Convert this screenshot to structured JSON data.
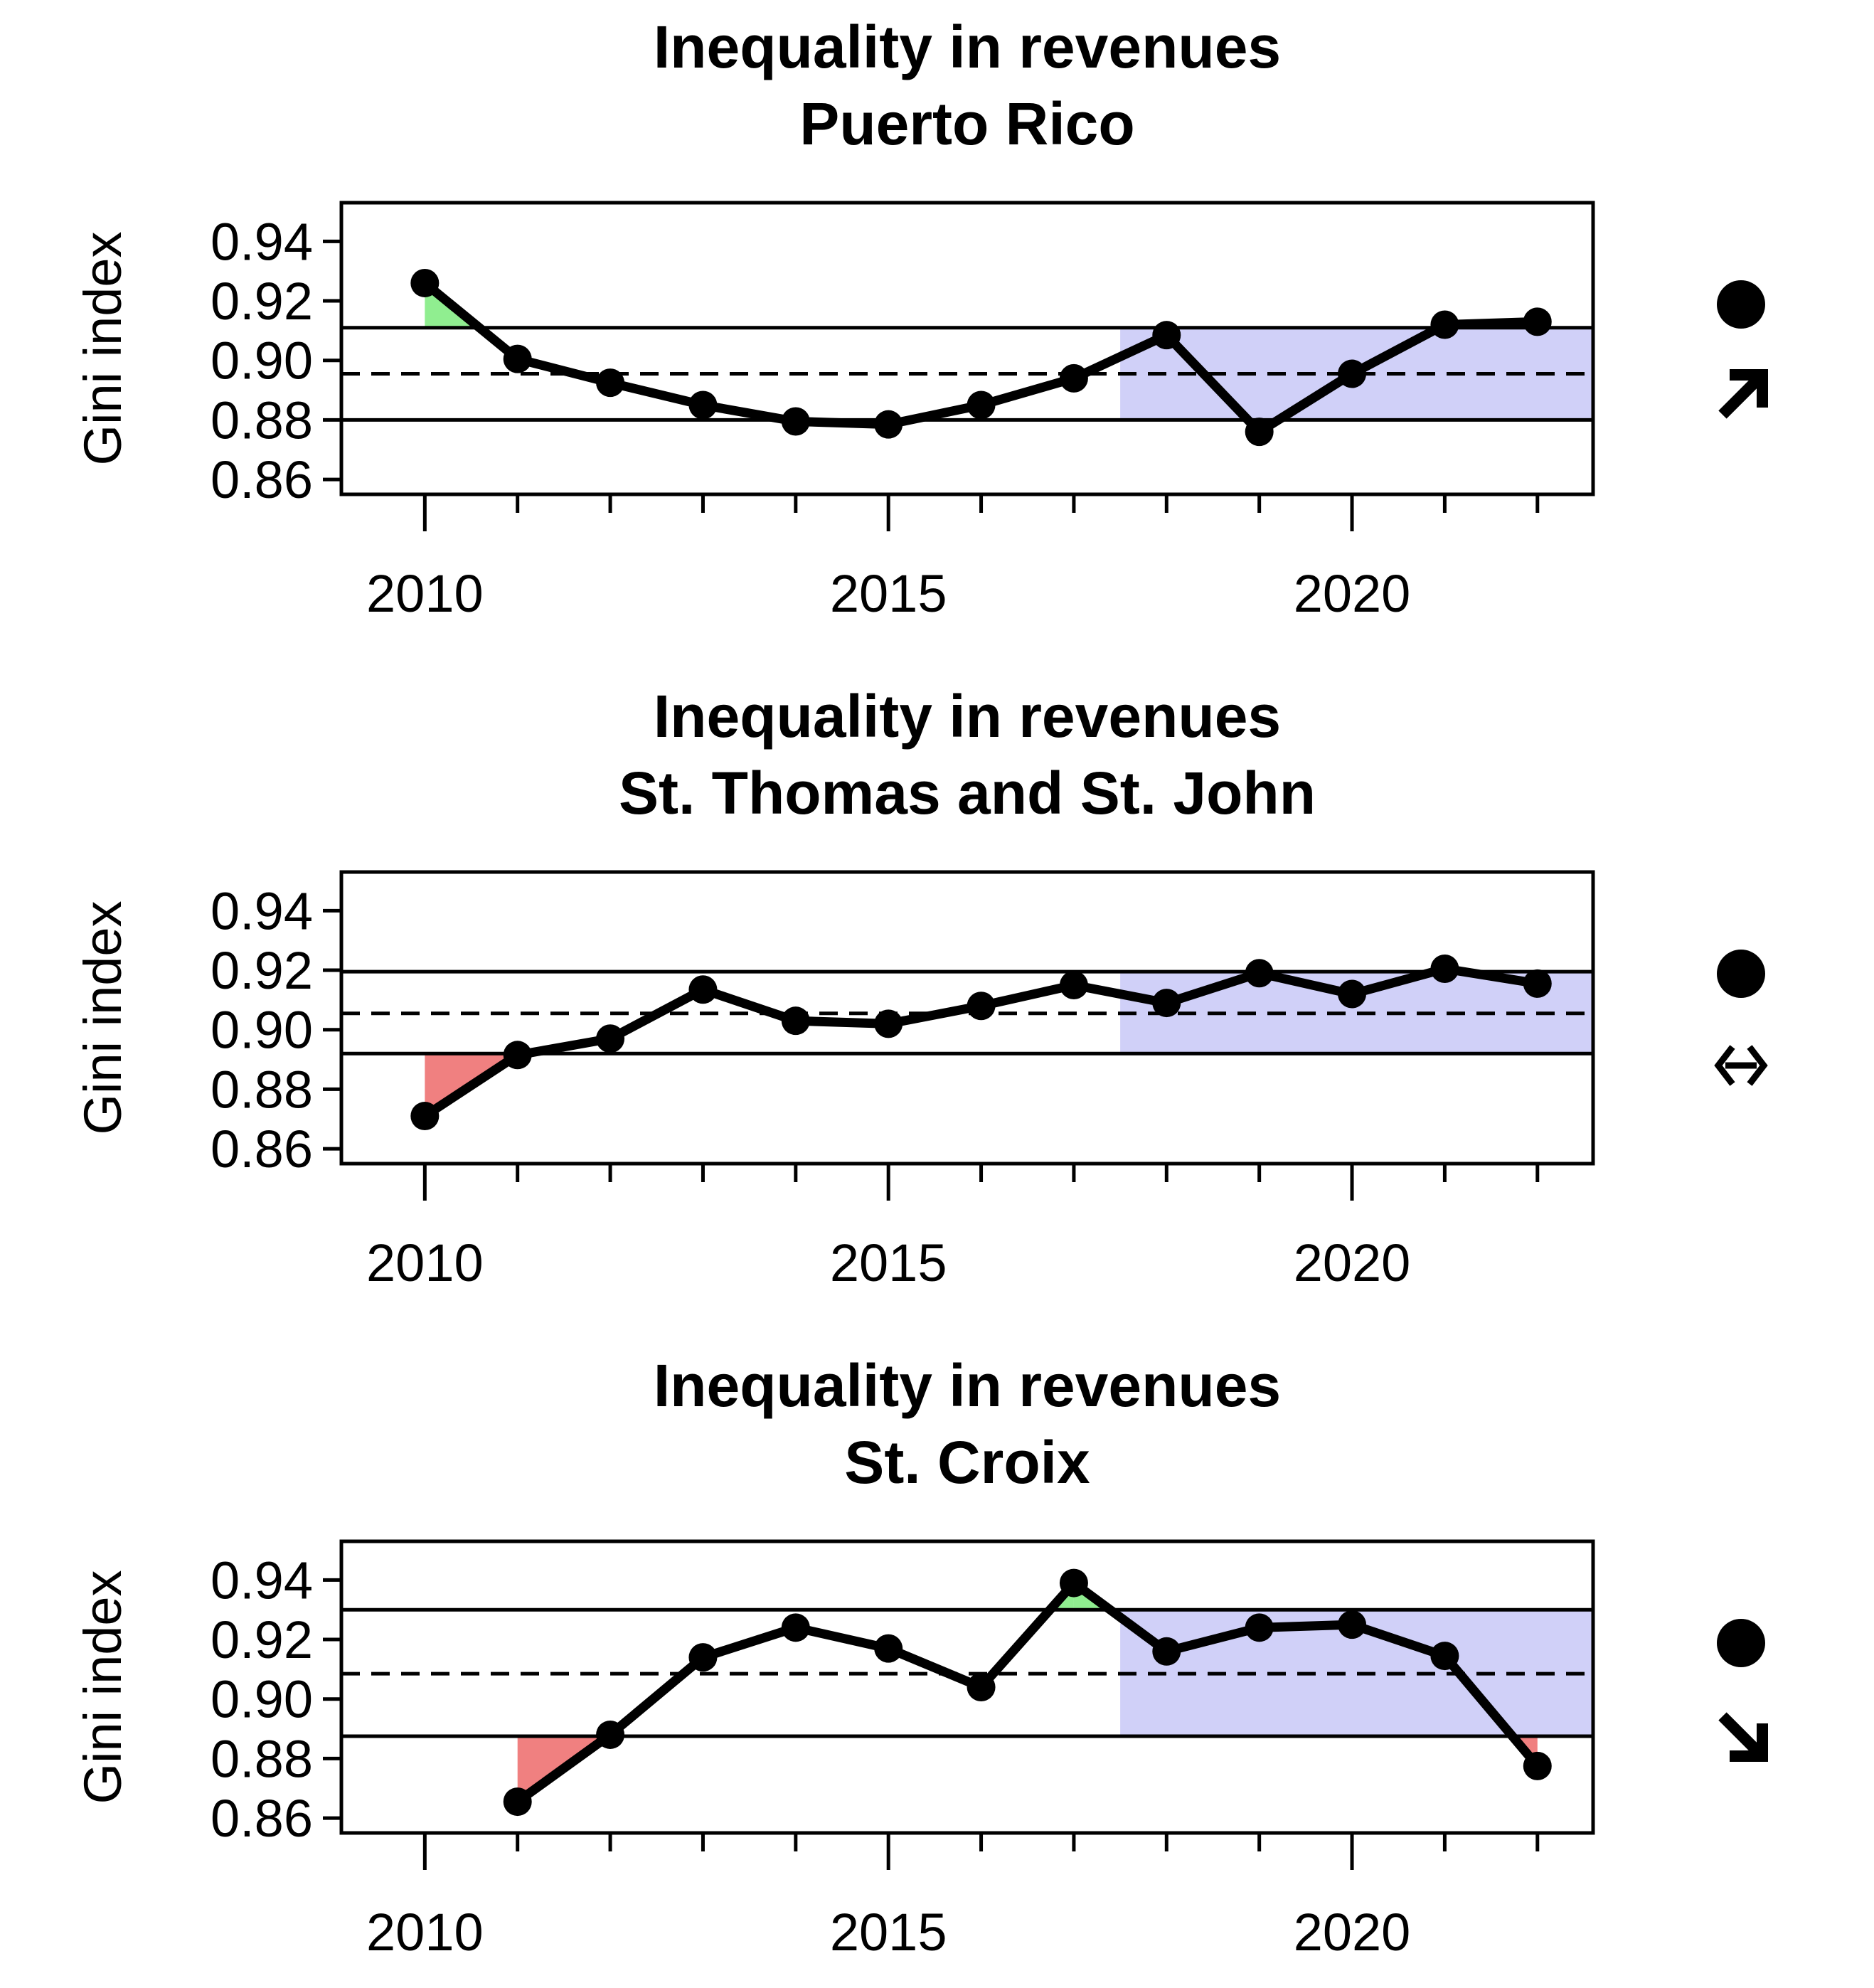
{
  "chart_data": [
    {
      "type": "line",
      "title": "Inequality in revenues",
      "subtitle": "Puerto Rico",
      "ylabel": "Gini index",
      "xlabel": "",
      "xlim": [
        2009.1,
        2022.6
      ],
      "ylim": [
        0.855,
        0.953
      ],
      "xticks": [
        2010,
        2015,
        2020
      ],
      "yticks": [
        0.86,
        0.88,
        0.9,
        0.92,
        0.94
      ],
      "x": [
        2010,
        2011,
        2012,
        2013,
        2014,
        2015,
        2016,
        2017,
        2018,
        2019,
        2020,
        2021,
        2022
      ],
      "values": [
        0.926,
        0.9005,
        0.8925,
        0.885,
        0.8795,
        0.8785,
        0.885,
        0.894,
        0.9085,
        0.876,
        0.8955,
        0.912,
        0.913
      ],
      "mean": 0.8955,
      "upper": 0.911,
      "lower": 0.88,
      "recent_start": 2017.5,
      "status_icon": "filled-circle",
      "trend_icon": "arrow-up-right-icon",
      "colors": {
        "above": "#90ee90",
        "below": "#f08080",
        "recent": "#d0d0f8",
        "line": "#000000"
      }
    },
    {
      "type": "line",
      "title": "Inequality in revenues",
      "subtitle": "St. Thomas and St. John",
      "ylabel": "Gini index",
      "xlabel": "",
      "xlim": [
        2009.1,
        2022.6
      ],
      "ylim": [
        0.855,
        0.953
      ],
      "xticks": [
        2010,
        2015,
        2020
      ],
      "yticks": [
        0.86,
        0.88,
        0.9,
        0.92,
        0.94
      ],
      "x": [
        2010,
        2011,
        2012,
        2013,
        2014,
        2015,
        2016,
        2017,
        2018,
        2019,
        2020,
        2021,
        2022
      ],
      "values": [
        0.871,
        0.8915,
        0.897,
        0.9135,
        0.903,
        0.902,
        0.908,
        0.915,
        0.909,
        0.919,
        0.912,
        0.9205,
        0.9155
      ],
      "mean": 0.9055,
      "upper": 0.9195,
      "lower": 0.892,
      "recent_start": 2017.5,
      "status_icon": "filled-circle",
      "trend_icon": "double-arrow-horizontal-icon",
      "colors": {
        "above": "#90ee90",
        "below": "#f08080",
        "recent": "#d0d0f8",
        "line": "#000000"
      }
    },
    {
      "type": "line",
      "title": "Inequality in revenues",
      "subtitle": "St. Croix",
      "ylabel": "Gini index",
      "xlabel": "",
      "xlim": [
        2009.1,
        2022.6
      ],
      "ylim": [
        0.855,
        0.953
      ],
      "xticks": [
        2010,
        2015,
        2020
      ],
      "yticks": [
        0.86,
        0.88,
        0.9,
        0.92,
        0.94
      ],
      "x": [
        2011,
        2012,
        2013,
        2014,
        2015,
        2016,
        2017,
        2018,
        2019,
        2020,
        2021,
        2022
      ],
      "values": [
        0.8655,
        0.888,
        0.914,
        0.924,
        0.917,
        0.904,
        0.939,
        0.916,
        0.924,
        0.925,
        0.9145,
        0.8775
      ],
      "mean": 0.9085,
      "upper": 0.93,
      "lower": 0.8875,
      "recent_start": 2017.5,
      "status_icon": "filled-circle",
      "trend_icon": "arrow-down-right-icon",
      "colors": {
        "above": "#90ee90",
        "below": "#f08080",
        "recent": "#d0d0f8",
        "line": "#000000"
      }
    }
  ]
}
